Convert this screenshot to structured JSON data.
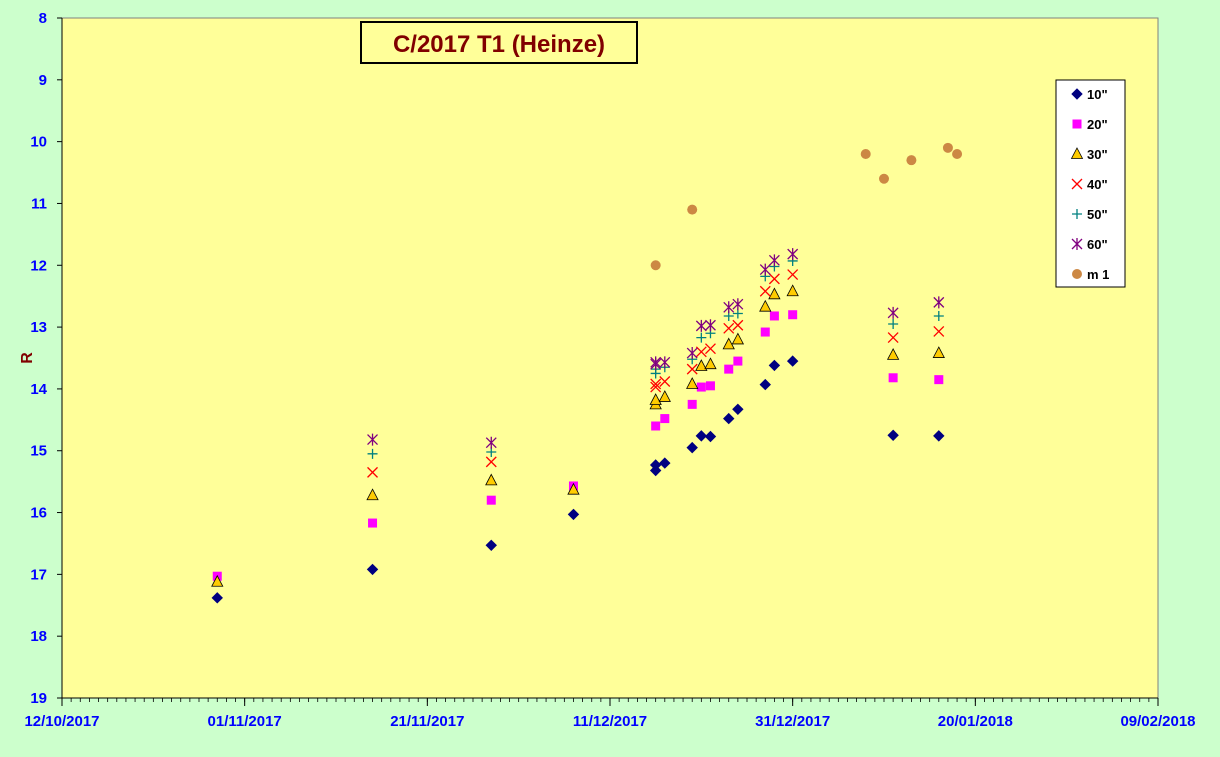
{
  "chart_data": {
    "type": "scatter",
    "title": "C/2017 T1 (Heinze)",
    "ylabel": "R",
    "xlabel": "",
    "y_inverted": true,
    "ylim": [
      8,
      19
    ],
    "y_ticks": [
      8,
      9,
      10,
      11,
      12,
      13,
      14,
      15,
      16,
      17,
      18,
      19
    ],
    "xlim": [
      "2017-10-12",
      "2018-02-09"
    ],
    "x_ticks": [
      "12/10/2017",
      "01/11/2017",
      "21/11/2017",
      "11/12/2017",
      "31/12/2017",
      "20/01/2018",
      "09/02/2018"
    ],
    "grid": false,
    "legend_position": "right",
    "colors": {
      "background": "#ccffcc",
      "plot_area": "#ffff99",
      "title_text": "#800000",
      "axis_text": "#0000ff"
    },
    "series": [
      {
        "name": "10\"",
        "marker": "diamond",
        "color": "#000080",
        "points": [
          [
            "2017-10-29",
            17.38
          ],
          [
            "2017-11-15",
            16.92
          ],
          [
            "2017-11-28",
            16.53
          ],
          [
            "2017-12-07",
            16.03
          ],
          [
            "2017-12-16",
            15.32
          ],
          [
            "2017-12-16",
            15.23
          ],
          [
            "2017-12-17",
            15.2
          ],
          [
            "2017-12-20",
            14.95
          ],
          [
            "2017-12-21",
            14.76
          ],
          [
            "2017-12-22",
            14.77
          ],
          [
            "2017-12-24",
            14.48
          ],
          [
            "2017-12-25",
            14.33
          ],
          [
            "2017-12-28",
            13.93
          ],
          [
            "2017-12-29",
            13.62
          ],
          [
            "2017-12-31",
            13.55
          ],
          [
            "2018-01-11",
            14.75
          ],
          [
            "2018-01-16",
            14.76
          ]
        ]
      },
      {
        "name": "20\"",
        "marker": "square",
        "color": "#ff00ff",
        "points": [
          [
            "2017-10-29",
            17.03
          ],
          [
            "2017-11-15",
            16.17
          ],
          [
            "2017-11-28",
            15.8
          ],
          [
            "2017-12-07",
            15.57
          ],
          [
            "2017-12-16",
            14.6
          ],
          [
            "2017-12-17",
            14.48
          ],
          [
            "2017-12-20",
            14.25
          ],
          [
            "2017-12-21",
            13.97
          ],
          [
            "2017-12-22",
            13.95
          ],
          [
            "2017-12-24",
            13.68
          ],
          [
            "2017-12-25",
            13.55
          ],
          [
            "2017-12-28",
            13.08
          ],
          [
            "2017-12-29",
            12.82
          ],
          [
            "2017-12-31",
            12.8
          ],
          [
            "2018-01-11",
            13.82
          ],
          [
            "2018-01-16",
            13.85
          ]
        ]
      },
      {
        "name": "30\"",
        "marker": "triangle",
        "color": "#ffcc00",
        "points": [
          [
            "2017-10-29",
            17.12
          ],
          [
            "2017-11-15",
            15.72
          ],
          [
            "2017-11-28",
            15.48
          ],
          [
            "2017-12-07",
            15.63
          ],
          [
            "2017-12-16",
            14.25
          ],
          [
            "2017-12-16",
            14.18
          ],
          [
            "2017-12-17",
            14.13
          ],
          [
            "2017-12-20",
            13.92
          ],
          [
            "2017-12-21",
            13.63
          ],
          [
            "2017-12-22",
            13.6
          ],
          [
            "2017-12-24",
            13.28
          ],
          [
            "2017-12-25",
            13.2
          ],
          [
            "2017-12-28",
            12.67
          ],
          [
            "2017-12-29",
            12.47
          ],
          [
            "2017-12-31",
            12.42
          ],
          [
            "2018-01-11",
            13.45
          ],
          [
            "2018-01-16",
            13.42
          ]
        ]
      },
      {
        "name": "40\"",
        "marker": "x",
        "color": "#ff0000",
        "points": [
          [
            "2017-11-15",
            15.35
          ],
          [
            "2017-11-28",
            15.18
          ],
          [
            "2017-12-16",
            13.97
          ],
          [
            "2017-12-16",
            13.92
          ],
          [
            "2017-12-17",
            13.88
          ],
          [
            "2017-12-20",
            13.68
          ],
          [
            "2017-12-21",
            13.4
          ],
          [
            "2017-12-22",
            13.35
          ],
          [
            "2017-12-24",
            13.02
          ],
          [
            "2017-12-25",
            12.97
          ],
          [
            "2017-12-28",
            12.42
          ],
          [
            "2017-12-29",
            12.22
          ],
          [
            "2017-12-31",
            12.15
          ],
          [
            "2018-01-11",
            13.17
          ],
          [
            "2018-01-16",
            13.07
          ]
        ]
      },
      {
        "name": "50\"",
        "marker": "plus",
        "color": "#008080",
        "points": [
          [
            "2017-11-15",
            15.05
          ],
          [
            "2017-11-28",
            15.02
          ],
          [
            "2017-12-16",
            13.75
          ],
          [
            "2017-12-16",
            13.68
          ],
          [
            "2017-12-17",
            13.65
          ],
          [
            "2017-12-20",
            13.52
          ],
          [
            "2017-12-21",
            13.17
          ],
          [
            "2017-12-22",
            13.1
          ],
          [
            "2017-12-24",
            12.82
          ],
          [
            "2017-12-25",
            12.78
          ],
          [
            "2017-12-28",
            12.18
          ],
          [
            "2017-12-29",
            12.02
          ],
          [
            "2017-12-31",
            11.93
          ],
          [
            "2018-01-11",
            12.95
          ],
          [
            "2018-01-16",
            12.82
          ]
        ]
      },
      {
        "name": "60\"",
        "marker": "star",
        "color": "#800080",
        "points": [
          [
            "2017-11-15",
            14.82
          ],
          [
            "2017-11-28",
            14.87
          ],
          [
            "2017-12-16",
            13.6
          ],
          [
            "2017-12-16",
            13.57
          ],
          [
            "2017-12-17",
            13.57
          ],
          [
            "2017-12-20",
            13.42
          ],
          [
            "2017-12-21",
            12.98
          ],
          [
            "2017-12-22",
            12.97
          ],
          [
            "2017-12-24",
            12.68
          ],
          [
            "2017-12-25",
            12.63
          ],
          [
            "2017-12-28",
            12.07
          ],
          [
            "2017-12-29",
            11.92
          ],
          [
            "2017-12-31",
            11.82
          ],
          [
            "2018-01-11",
            12.77
          ],
          [
            "2018-01-16",
            12.6
          ]
        ]
      },
      {
        "name": "m 1",
        "marker": "circle",
        "color": "#cc8844",
        "points": [
          [
            "2017-12-16",
            12.0
          ],
          [
            "2017-12-20",
            11.1
          ],
          [
            "2018-01-08",
            10.2
          ],
          [
            "2018-01-10",
            10.6
          ],
          [
            "2018-01-13",
            10.3
          ],
          [
            "2018-01-17",
            10.1
          ],
          [
            "2018-01-18",
            10.2
          ]
        ]
      }
    ]
  }
}
